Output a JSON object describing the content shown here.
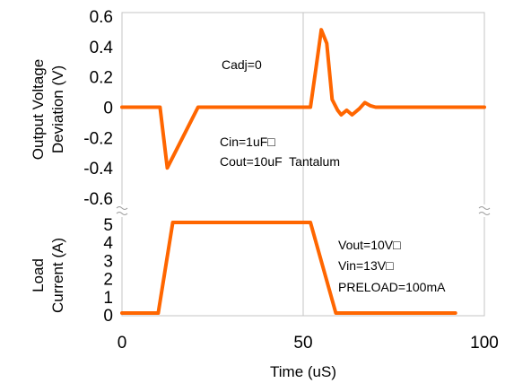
{
  "chart_data": [
    {
      "type": "line",
      "ylabel": [
        "Output Voltage",
        "Deviation (V)"
      ],
      "ylim": [
        -0.6,
        0.6
      ],
      "yticks": [
        "0.6",
        "0.4",
        "0.2",
        "0",
        "-0.2",
        "-0.4",
        "-0.6"
      ],
      "grid": "vertical",
      "annotations": [
        "Cadj=0",
        "Cin=1uF□",
        "Cout=10uF  Tantalum"
      ],
      "series": [
        {
          "color": "#ff6600",
          "x": [
            0,
            10.5,
            12.5,
            21,
            52,
            53.5,
            55,
            56.5,
            58,
            59.5,
            60.5,
            62,
            63.5,
            65.5,
            67,
            68.5,
            70,
            100
          ],
          "y": [
            0,
            0,
            -0.4,
            0,
            0,
            0.25,
            0.51,
            0.42,
            0.05,
            -0.02,
            -0.05,
            -0.02,
            -0.05,
            -0.01,
            0.03,
            0.01,
            0,
            0
          ]
        }
      ]
    },
    {
      "type": "line",
      "ylabel": [
        "Load",
        "Current (A)"
      ],
      "xlabel": "Time (uS)",
      "ylim": [
        0,
        5
      ],
      "xlim": [
        0,
        100
      ],
      "yticks": [
        "5",
        "4",
        "3",
        "2",
        "1",
        "0"
      ],
      "xticks": [
        "0",
        "50",
        "100"
      ],
      "grid": "vertical",
      "annotations": [
        "Vout=10V□",
        "Vin=13V□",
        "PRELOAD=100mA"
      ],
      "series": [
        {
          "color": "#ff6600",
          "x": [
            0,
            10,
            14,
            52,
            59,
            92
          ],
          "y": [
            0.1,
            0.1,
            5.1,
            5.1,
            0.1,
            0.1
          ]
        }
      ]
    }
  ]
}
